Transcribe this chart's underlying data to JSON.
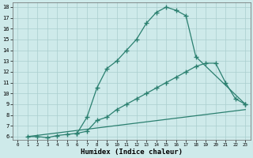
{
  "line1_x": [
    1,
    2,
    3,
    4,
    5,
    6,
    7,
    8,
    9,
    10,
    11,
    12,
    13,
    14,
    15,
    16,
    17,
    18,
    23
  ],
  "line1_y": [
    6.0,
    6.0,
    5.9,
    6.1,
    6.2,
    6.3,
    7.8,
    10.5,
    12.3,
    13.0,
    14.0,
    15.0,
    16.5,
    17.5,
    18.0,
    17.7,
    17.2,
    13.4,
    9.0
  ],
  "line2_x": [
    6,
    7,
    8,
    9,
    10,
    11,
    12,
    13,
    14,
    15,
    16,
    17,
    18,
    19,
    20,
    21,
    22,
    23
  ],
  "line2_y": [
    6.3,
    6.5,
    7.5,
    7.8,
    8.5,
    9.0,
    9.5,
    10.0,
    10.5,
    11.0,
    11.5,
    12.0,
    12.5,
    12.8,
    12.8,
    11.0,
    9.5,
    9.0
  ],
  "line3_x": [
    1,
    23
  ],
  "line3_y": [
    6.0,
    8.5
  ],
  "color": "#2a7f6f",
  "bg_color": "#ceeaea",
  "grid_color": "#aacece",
  "xlabel": "Humidex (Indice chaleur)",
  "xlim": [
    -0.5,
    23.5
  ],
  "ylim": [
    5.7,
    18.4
  ],
  "yticks": [
    6,
    7,
    8,
    9,
    10,
    11,
    12,
    13,
    14,
    15,
    16,
    17,
    18
  ],
  "xticks": [
    0,
    1,
    2,
    3,
    4,
    5,
    6,
    7,
    8,
    9,
    10,
    11,
    12,
    13,
    14,
    15,
    16,
    17,
    18,
    19,
    20,
    21,
    22,
    23
  ],
  "marker": "+",
  "markersize": 4,
  "linewidth": 0.9
}
